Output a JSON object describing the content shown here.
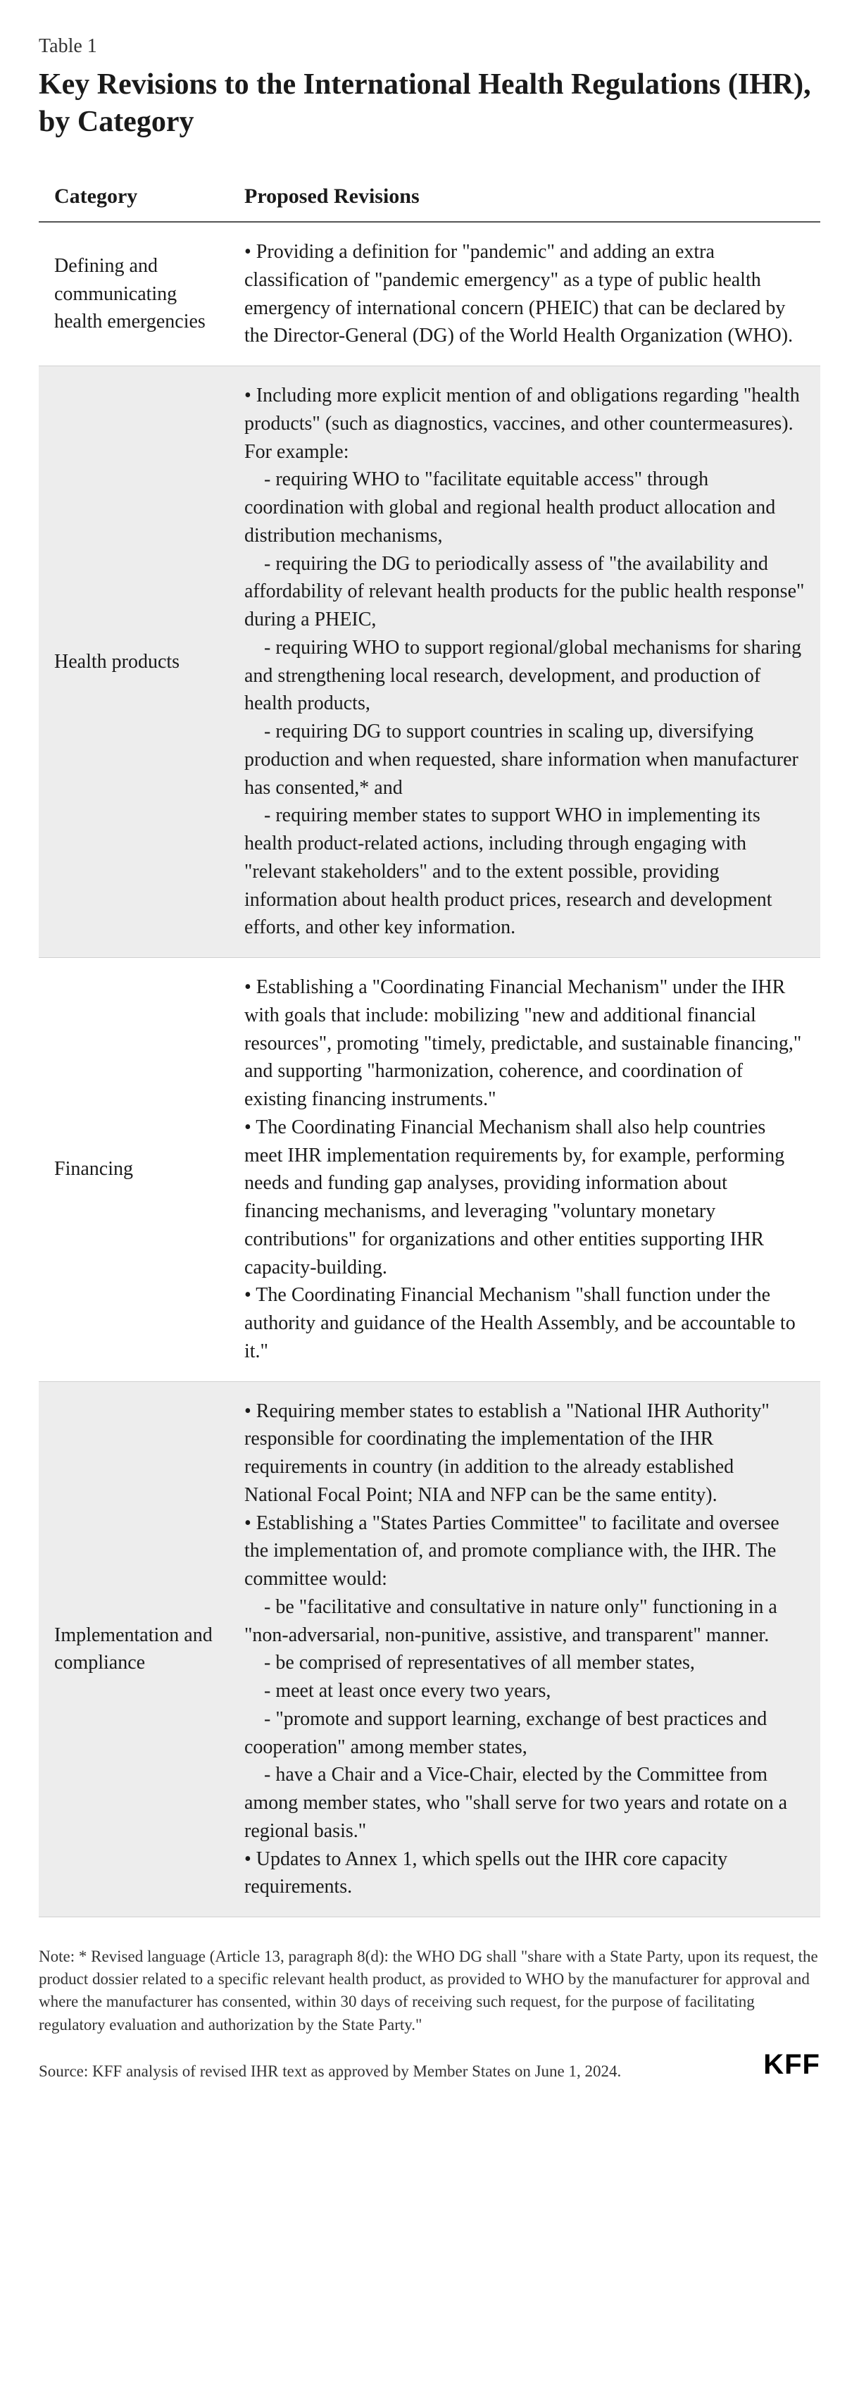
{
  "table_label": "Table 1",
  "title": "Key Revisions to the International Health Regulations (IHR), by Category",
  "columns": {
    "category": "Category",
    "revisions": "Proposed Revisions"
  },
  "rows": [
    {
      "category": "Defining and communicating health emergencies",
      "revisions": "• Providing a definition for \"pandemic\" and adding an extra classification of \"pandemic emergency\" as a type of public health emergency of international concern (PHEIC) that can be declared by the Director-General (DG) of the World Health Organization (WHO)."
    },
    {
      "category": "Health products",
      "revisions": "• Including more explicit mention of and obligations regarding \"health products\" (such as diagnostics, vaccines, and other countermeasures). For example:\n    - requiring WHO to \"facilitate equitable access\" through coordination with global and regional health product allocation and distribution mechanisms,\n    - requiring the DG to periodically assess of \"the availability and affordability of relevant health products for the public health response\" during a PHEIC,\n    - requiring WHO to support regional/global mechanisms for sharing and strengthening local research, development, and production of health products,\n    - requiring DG to support countries in scaling up, diversifying production and when requested, share information when manufacturer has consented,* and\n    - requiring member states to support WHO in implementing its health product-related actions, including through engaging with \"relevant stakeholders\" and to the extent possible, providing information about health product prices, research and development efforts, and other key information."
    },
    {
      "category": "Financing",
      "revisions": "• Establishing a \"Coordinating Financial Mechanism\" under the IHR with goals that include: mobilizing \"new and additional financial resources\", promoting \"timely, predictable, and sustainable financing,\" and supporting \"harmonization, coherence, and coordination of existing financing instruments.\"\n• The Coordinating Financial Mechanism shall also help countries meet IHR implementation requirements by, for example, performing needs and funding gap analyses, providing information about financing mechanisms, and leveraging \"voluntary monetary contributions\" for organizations and other entities supporting IHR capacity-building.\n• The Coordinating Financial Mechanism \"shall function under the authority and guidance of the Health Assembly, and be accountable to it.\""
    },
    {
      "category": "Implementation and compliance",
      "revisions": "• Requiring member states to establish a \"National IHR Authority\" responsible for coordinating the implementation of the IHR requirements in country (in addition to the already established National Focal Point; NIA and NFP can be the same entity).\n• Establishing a \"States Parties Committee\" to facilitate and oversee the implementation of, and promote compliance with, the IHR. The committee would:\n    - be \"facilitative and consultative in nature only\" functioning in a \"non-adversarial, non-punitive, assistive, and transparent\" manner.\n    - be comprised of representatives of all member states,\n    - meet at least once every two years,\n    - \"promote and support learning, exchange of best practices and cooperation\" among member states,\n    - have a Chair and a Vice-Chair, elected by the Committee from among member states, who \"shall serve for two years and rotate on a regional basis.\"\n• Updates to Annex 1, which spells out the IHR core capacity requirements."
    }
  ],
  "footnote": "Note: * Revised language (Article 13, paragraph 8(d): the WHO DG shall \"share with a State Party, upon its request, the product dossier related to a specific relevant health product, as provided to WHO by the manufacturer for approval and where the manufacturer has consented, within 30 days of receiving such request, for the purpose of facilitating regulatory evaluation and authorization by the State Party.\"",
  "source": "Source: KFF analysis of revised IHR text as approved by Member States on June 1, 2024.",
  "logo": "KFF"
}
